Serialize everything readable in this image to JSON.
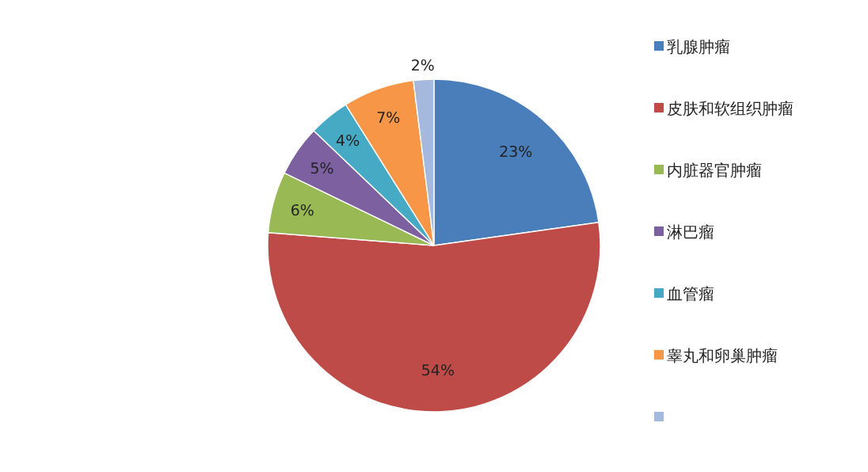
{
  "chart_data": {
    "type": "pie",
    "categories": [
      "乳腺肿瘤",
      "皮肤和软组织肿瘤",
      "内脏器官肿瘤",
      "淋巴瘤",
      "血管瘤",
      "睾丸和卵巢肿瘤",
      null
    ],
    "values": [
      23,
      54,
      6,
      5,
      4,
      7,
      2
    ],
    "colors": [
      "#4a7ebb",
      "#be4b48",
      "#98b954",
      "#7d60a0",
      "#46aac5",
      "#f79646",
      "#a5b9de"
    ],
    "value_labels": [
      "23%",
      "54%",
      "6%",
      "5%",
      "4%",
      "7%",
      "2%"
    ],
    "legend": "right"
  }
}
